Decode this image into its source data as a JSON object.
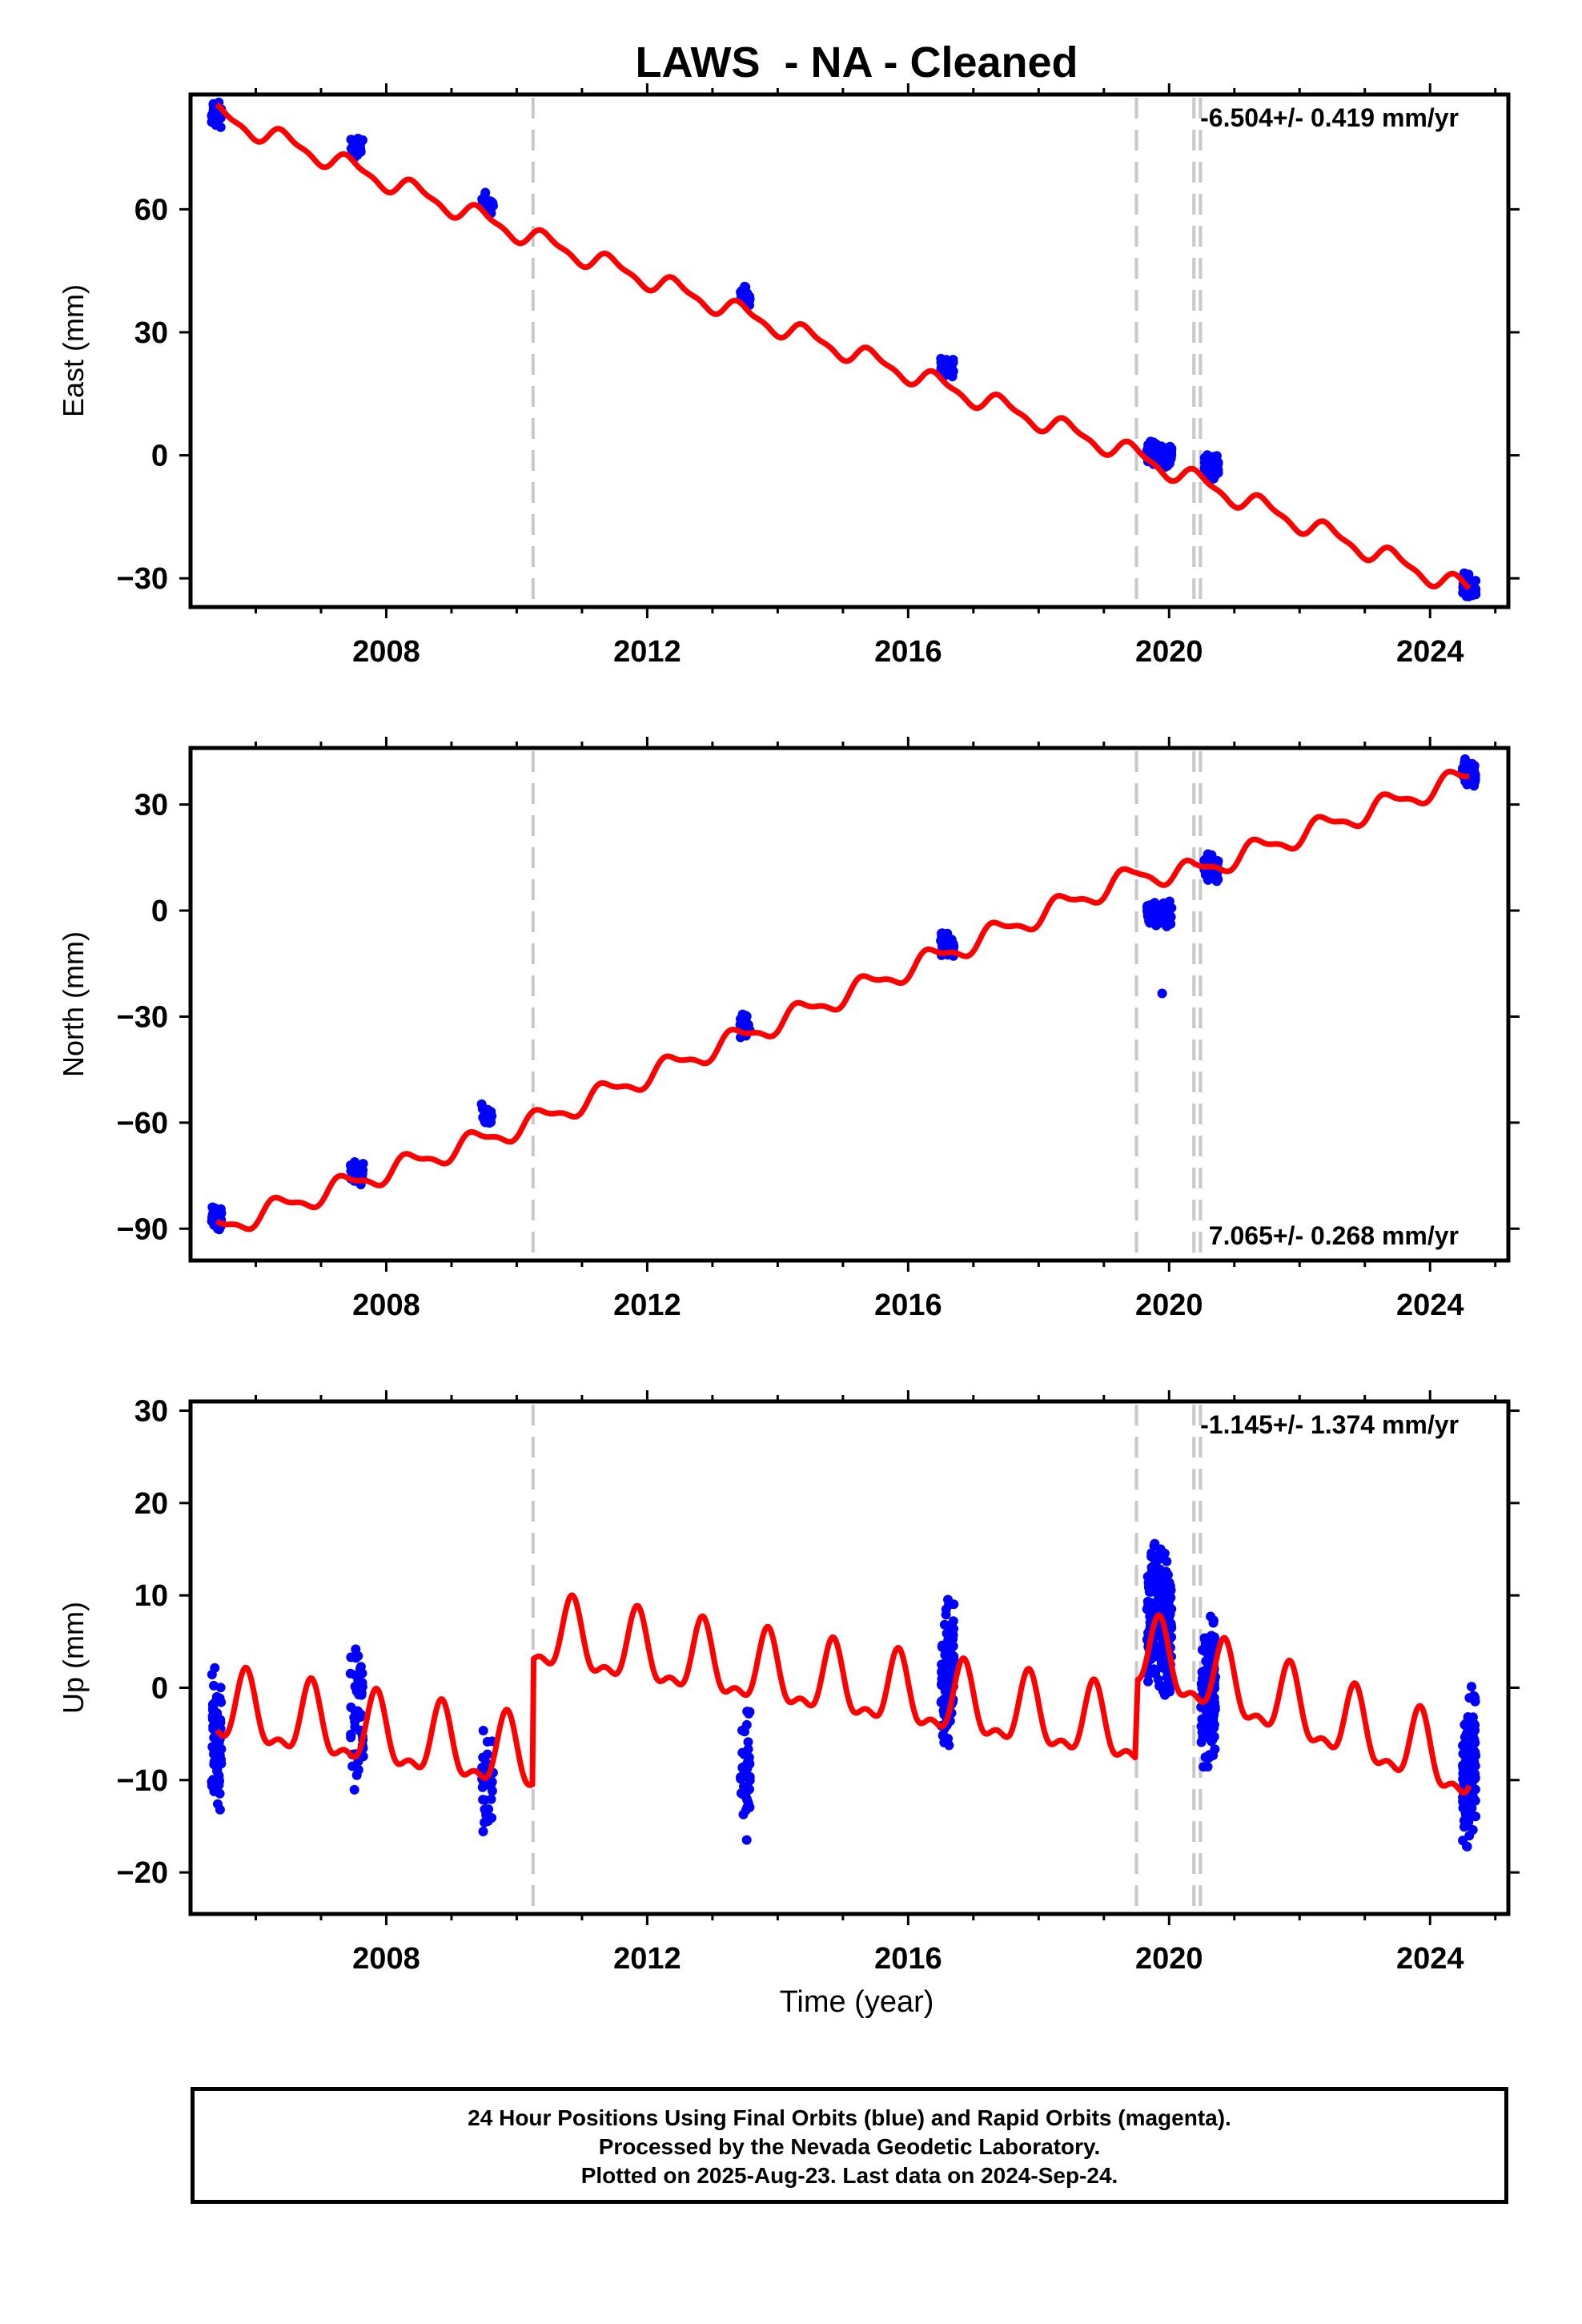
{
  "chart_data": {
    "type": "scatter",
    "title": "LAWS  - NA - Cleaned",
    "xlabel": "Time (year)",
    "xlim": [
      2005.0,
      2025.2
    ],
    "x_ticks": [
      "2008",
      "2012",
      "2016",
      "2020",
      "2024"
    ],
    "grid": false,
    "breaks": [
      2010.25,
      2019.5,
      2020.38,
      2020.48
    ],
    "panels": [
      {
        "name": "east",
        "ylabel": "East (mm)",
        "ylim": [
          -37,
          88
        ],
        "y_ticks": [
          "60",
          "30",
          "0",
          "−30"
        ],
        "rate_text": "-6.504+/- 0.419 mm/yr",
        "rate_position": "top-right",
        "series": [
          {
            "role": "observations",
            "color": "#0000ff",
            "x": [
              2005.4,
              2007.55,
              2009.55,
              2013.5,
              2016.6,
              2019.85,
              2020.65,
              2024.6
            ],
            "y": [
              82,
              74,
              61,
              38,
              21,
              1,
              -3,
              -32
            ]
          },
          {
            "role": "model",
            "color": "#ff0000",
            "x": [
              2005.4,
              2010.25,
              2019.5,
              2020.38,
              2024.6
            ],
            "y": [
              83,
              53,
              0,
              -6,
              -33
            ]
          }
        ]
      },
      {
        "name": "north",
        "ylabel": "North (mm)",
        "ylim": [
          -99,
          46
        ],
        "y_ticks": [
          "30",
          "0",
          "−30",
          "−60",
          "−90"
        ],
        "rate_text": "7.065+/- 0.268 mm/yr",
        "rate_position": "bottom-right",
        "series": [
          {
            "role": "observations",
            "color": "#0000ff",
            "x": [
              2005.4,
              2007.55,
              2009.55,
              2013.5,
              2016.6,
              2019.85,
              2019.9,
              2020.65,
              2024.6
            ],
            "y": [
              -88,
              -74,
              -58,
              -33,
              -10,
              0,
              -25,
              12,
              39
            ]
          },
          {
            "role": "model",
            "color": "#ff0000",
            "x": [
              2005.4,
              2010.25,
              2019.5,
              2020.38,
              2024.6
            ],
            "y": [
              -90,
              -60,
              10,
              11,
              38
            ]
          }
        ]
      },
      {
        "name": "up",
        "ylabel": "Up (mm)",
        "ylim": [
          -24.5,
          31
        ],
        "y_ticks": [
          "30",
          "20",
          "10",
          "0",
          "−10",
          "−20"
        ],
        "rate_text": "-1.145+/- 1.374 mm/yr",
        "rate_position": "top-right",
        "series": [
          {
            "role": "observations",
            "color": "#0000ff",
            "x": [
              2005.4,
              2007.55,
              2009.55,
              2013.5,
              2016.6,
              2019.85,
              2020.6,
              2024.6
            ],
            "y": [
              -4,
              -2,
              -10,
              -8,
              2,
              6,
              0,
              -8
            ]
          },
          {
            "role": "model",
            "color": "#ff0000",
            "x": [
              2005.4,
              2010.24,
              2010.26,
              2019.49,
              2019.51,
              2024.6
            ],
            "y": [
              -2.5,
              -8,
              5.5,
              -5,
              3.5,
              -9
            ]
          }
        ]
      }
    ]
  },
  "footer": {
    "line1": "24 Hour Positions Using Final Orbits (blue) and Rapid Orbits (magenta).",
    "line2": "Processed by the Nevada Geodetic Laboratory.",
    "line3": "Plotted on 2025-Aug-23. Last data on 2024-Sep-24."
  }
}
